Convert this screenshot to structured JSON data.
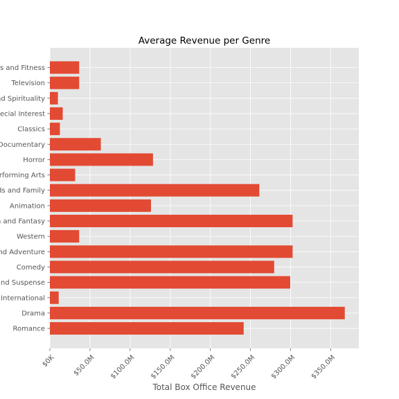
{
  "chart_data": {
    "type": "bar",
    "orientation": "horizontal",
    "title": "Average Revenue per Genre",
    "xlabel": "Total Box Office Revenue",
    "ylabel": "",
    "categories": [
      "Sports and Fitness",
      "Television",
      "Faith and Spirituality",
      "Special Interest",
      "Classics",
      "Documentary",
      "Horror",
      "Performing Arts",
      "Kids and Family",
      "Animation",
      "Science Fiction and Fantasy",
      "Western",
      "Action and Adventure",
      "Comedy",
      "Mystery and Suspense",
      "International",
      "Drama",
      "Romance"
    ],
    "values": [
      36.5,
      36.5,
      10.0,
      16.0,
      12.5,
      63.5,
      128.5,
      31.5,
      261.0,
      126.0,
      302.5,
      36.5,
      302.5,
      279.5,
      299.5,
      11.0,
      367.5,
      241.5
    ],
    "xlim": [
      0,
      385
    ],
    "xticks": [
      0,
      50,
      100,
      150,
      200,
      250,
      300,
      350
    ],
    "xticklabels": [
      "$0K",
      "$50.0M",
      "$100.0M",
      "$150.0M",
      "$200.0M",
      "$250.0M",
      "$300.0M",
      "$350.0M"
    ],
    "grid": true,
    "colors": {
      "bar": "#E24A33",
      "plot_background": "#E5E5E5",
      "grid": "#FFFFFF",
      "tick": "#555555"
    }
  }
}
